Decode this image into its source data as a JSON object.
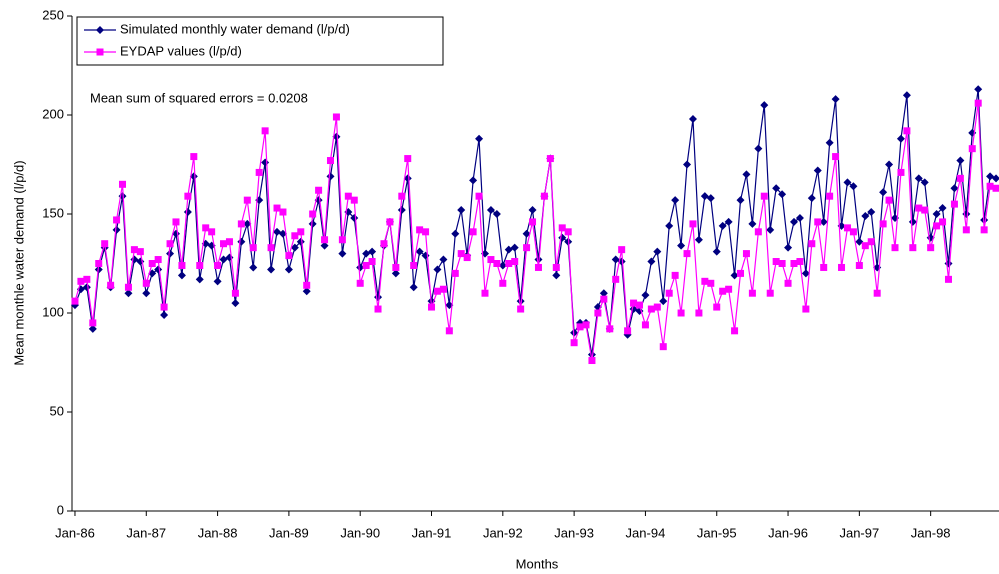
{
  "chart_data": {
    "type": "line",
    "x_label": "Months",
    "y_label": "Mean monthle water demand (l/p/d)",
    "annotation": "Mean sum of squared errors = 0.0208",
    "legend": "top-left",
    "grid": false,
    "ylim": [
      0,
      250
    ],
    "yticks": [
      0,
      50,
      100,
      150,
      200,
      250
    ],
    "categories": [
      "Jan-86",
      null,
      null,
      null,
      null,
      null,
      null,
      null,
      null,
      null,
      null,
      null,
      "Jan-87",
      null,
      null,
      null,
      null,
      null,
      null,
      null,
      null,
      null,
      null,
      null,
      "Jan-88",
      null,
      null,
      null,
      null,
      null,
      null,
      null,
      null,
      null,
      null,
      null,
      "Jan-89",
      null,
      null,
      null,
      null,
      null,
      null,
      null,
      null,
      null,
      null,
      null,
      "Jan-90",
      null,
      null,
      null,
      null,
      null,
      null,
      null,
      null,
      null,
      null,
      null,
      "Jan-91",
      null,
      null,
      null,
      null,
      null,
      null,
      null,
      null,
      null,
      null,
      null,
      "Jan-92",
      null,
      null,
      null,
      null,
      null,
      null,
      null,
      null,
      null,
      null,
      null,
      "Jan-93",
      null,
      null,
      null,
      null,
      null,
      null,
      null,
      null,
      null,
      null,
      null,
      "Jan-94",
      null,
      null,
      null,
      null,
      null,
      null,
      null,
      null,
      null,
      null,
      null,
      "Jan-95",
      null,
      null,
      null,
      null,
      null,
      null,
      null,
      null,
      null,
      null,
      null,
      "Jan-96",
      null,
      null,
      null,
      null,
      null,
      null,
      null,
      null,
      null,
      null,
      null,
      "Jan-97",
      null,
      null,
      null,
      null,
      null,
      null,
      null,
      null,
      null,
      null,
      null,
      "Jan-98",
      null,
      null,
      null,
      null,
      null,
      null,
      null,
      null,
      null,
      null,
      null
    ],
    "series": [
      {
        "name": "Simulated monthly water demand (l/p/d)",
        "color": "#000080",
        "marker": "diamond",
        "values": [
          104,
          112,
          113,
          92,
          122,
          133,
          113,
          142,
          159,
          110,
          127,
          126,
          110,
          120,
          122,
          99,
          130,
          140,
          119,
          151,
          169,
          117,
          135,
          134,
          116,
          127,
          128,
          105,
          136,
          145,
          123,
          157,
          176,
          122,
          141,
          140,
          122,
          133,
          136,
          111,
          145,
          157,
          134,
          169,
          189,
          130,
          151,
          148,
          123,
          130,
          131,
          108,
          134,
          146,
          120,
          152,
          168,
          113,
          131,
          129,
          106,
          122,
          127,
          104,
          140,
          152,
          129,
          167,
          188,
          130,
          152,
          150,
          124,
          132,
          133,
          106,
          140,
          152,
          127,
          159,
          178,
          119,
          138,
          136,
          90,
          95,
          95,
          79,
          103,
          110,
          92,
          127,
          126,
          89,
          102,
          101,
          109,
          126,
          131,
          106,
          144,
          157,
          134,
          175,
          198,
          137,
          159,
          158,
          131,
          144,
          146,
          119,
          157,
          170,
          145,
          183,
          205,
          142,
          163,
          160,
          133,
          146,
          148,
          120,
          158,
          172,
          146,
          186,
          208,
          144,
          166,
          164,
          136,
          149,
          151,
          123,
          161,
          175,
          148,
          188,
          210,
          146,
          168,
          166,
          138,
          150,
          153,
          125,
          163,
          177,
          150,
          191,
          213,
          147,
          169,
          168
        ]
      },
      {
        "name": "EYDAP values (l/p/d)",
        "color": "#ff00ff",
        "marker": "square",
        "values": [
          106,
          116,
          117,
          95,
          125,
          135,
          114,
          147,
          165,
          113,
          132,
          131,
          115,
          125,
          127,
          103,
          135,
          146,
          124,
          159,
          179,
          124,
          143,
          141,
          124,
          135,
          136,
          110,
          145,
          157,
          133,
          171,
          192,
          133,
          153,
          151,
          129,
          139,
          141,
          114,
          150,
          162,
          137,
          177,
          199,
          137,
          159,
          157,
          115,
          124,
          126,
          102,
          135,
          146,
          123,
          159,
          178,
          124,
          142,
          141,
          103,
          111,
          112,
          91,
          120,
          130,
          128,
          141,
          159,
          110,
          127,
          125,
          115,
          125,
          126,
          102,
          133,
          146,
          123,
          159,
          178,
          123,
          143,
          141,
          85,
          93,
          94,
          76,
          100,
          107,
          92,
          117,
          132,
          91,
          105,
          104,
          94,
          102,
          103,
          83,
          110,
          119,
          100,
          130,
          145,
          100,
          116,
          115,
          103,
          111,
          112,
          91,
          120,
          130,
          110,
          141,
          159,
          110,
          126,
          125,
          115,
          125,
          126,
          102,
          135,
          146,
          123,
          159,
          179,
          123,
          143,
          141,
          124,
          134,
          136,
          110,
          145,
          157,
          133,
          171,
          192,
          133,
          153,
          152,
          133,
          144,
          146,
          117,
          155,
          168,
          142,
          183,
          206,
          142,
          164,
          163
        ]
      }
    ]
  }
}
